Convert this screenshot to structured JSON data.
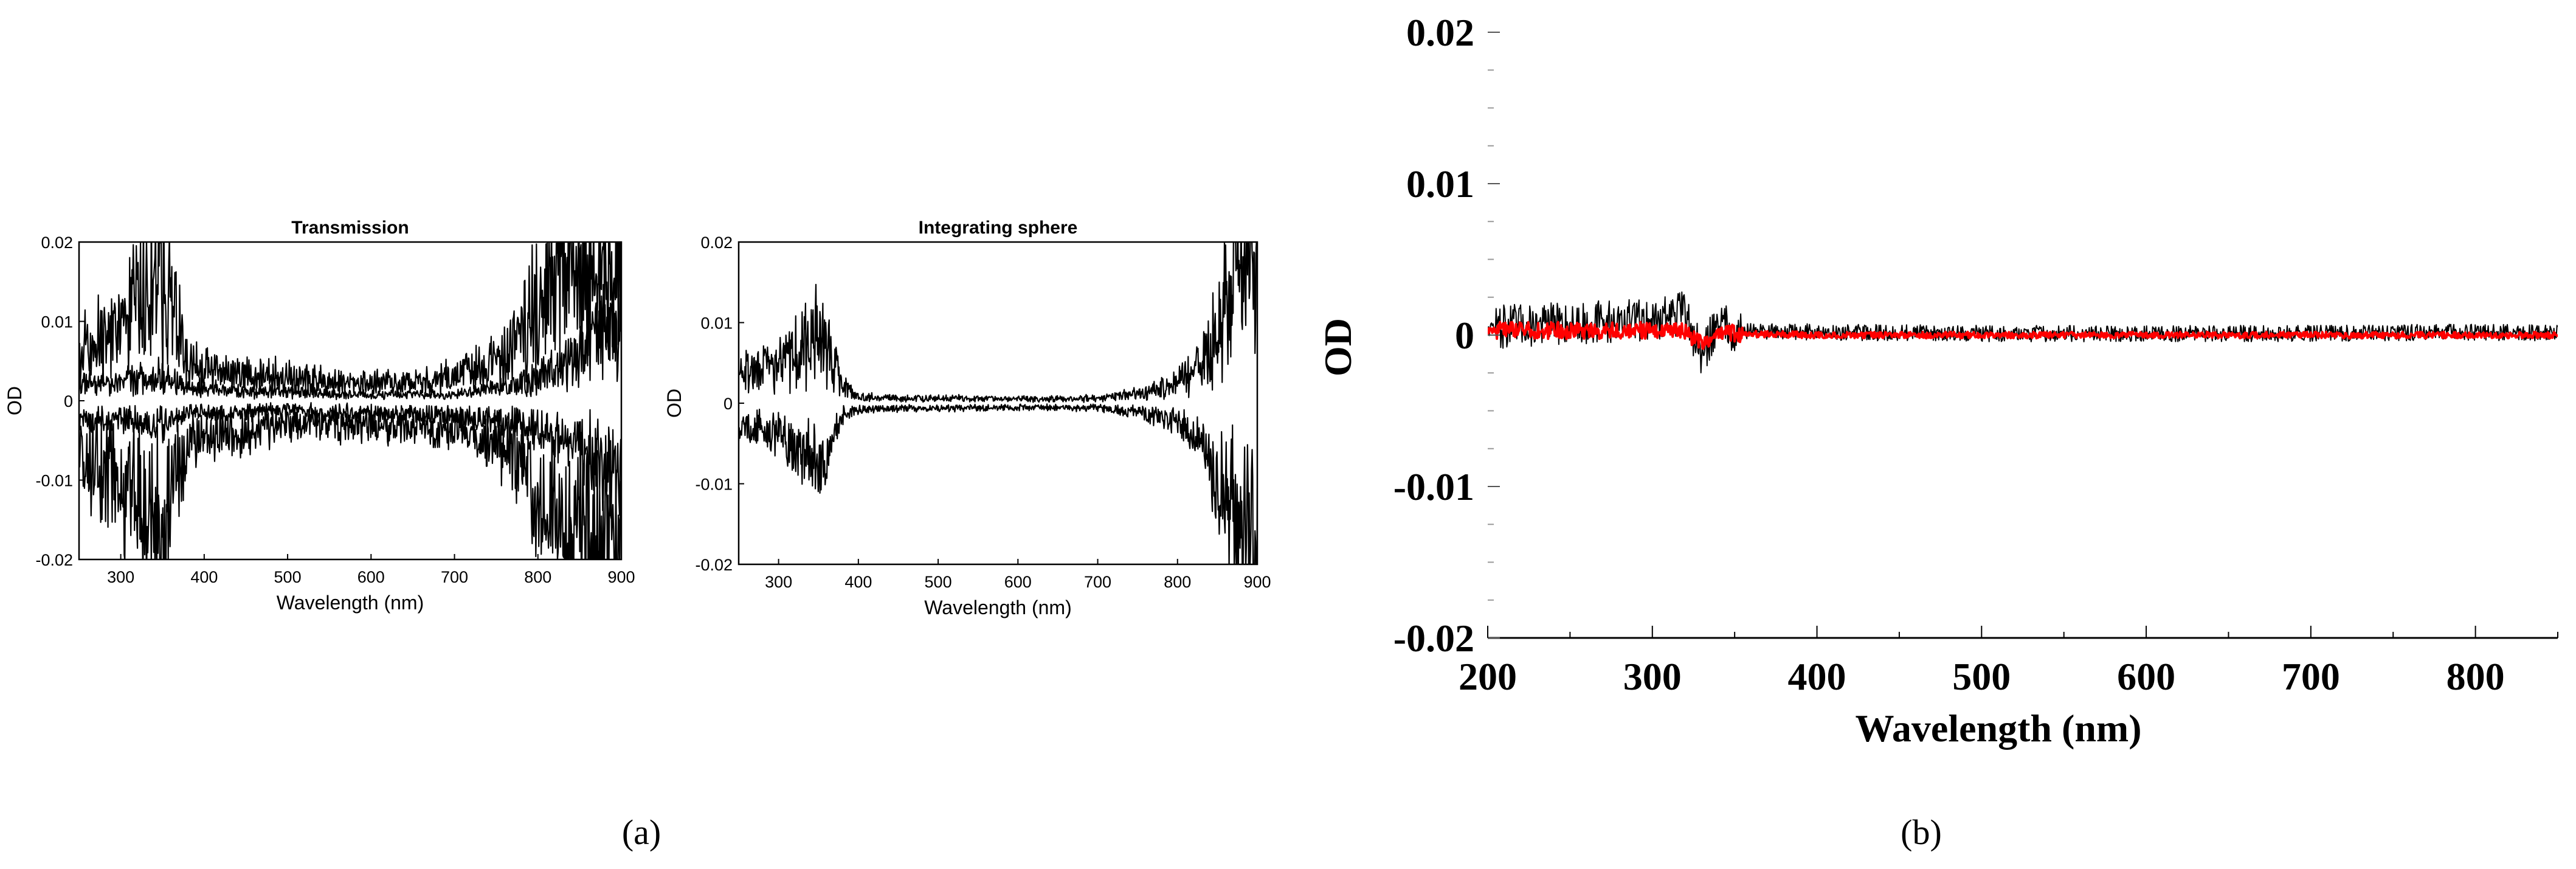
{
  "captions": {
    "a": "(a)",
    "b": "(b)"
  },
  "chart_data": [
    {
      "id": "a1",
      "type": "line",
      "title": "Transmission",
      "xlabel": "Wavelength (nm)",
      "ylabel": "OD",
      "xlim": [
        250,
        900
      ],
      "ylim": [
        -0.02,
        0.02
      ],
      "xticks": [
        300,
        400,
        500,
        600,
        700,
        800,
        900
      ],
      "yticks": [
        0.02,
        0.01,
        0,
        -0.01,
        -0.02
      ],
      "ytick_labels": [
        "0.02",
        "0.01",
        "0",
        "-0.01",
        "-0.02"
      ],
      "grid": false,
      "line_color": "#000000",
      "x": [
        250,
        300,
        350,
        380,
        400,
        450,
        500,
        550,
        600,
        650,
        700,
        750,
        780,
        800,
        830,
        850,
        870,
        890,
        900
      ],
      "series": [
        {
          "values": [
            0.008,
            0.012,
            0.02,
            0.006,
            0.005,
            0.004,
            0.004,
            0.003,
            0.003,
            0.003,
            0.004,
            0.006,
            0.01,
            0.016,
            0.02,
            0.02,
            0.02,
            0.02,
            0.02
          ]
        },
        {
          "values": [
            0.003,
            0.003,
            0.004,
            0.002,
            0.002,
            0.0015,
            0.0015,
            0.001,
            0.001,
            0.001,
            0.001,
            0.002,
            0.003,
            0.004,
            0.006,
            0.008,
            0.01,
            0.012,
            0.012
          ]
        },
        {
          "values": [
            -0.003,
            -0.003,
            -0.004,
            -0.002,
            -0.002,
            -0.002,
            -0.0015,
            -0.002,
            -0.002,
            -0.002,
            -0.0025,
            -0.003,
            -0.004,
            -0.005,
            -0.006,
            -0.008,
            -0.01,
            -0.012,
            -0.012
          ]
        },
        {
          "values": [
            -0.01,
            -0.014,
            -0.02,
            -0.007,
            -0.006,
            -0.005,
            -0.004,
            -0.004,
            -0.004,
            -0.004,
            -0.005,
            -0.007,
            -0.01,
            -0.016,
            -0.02,
            -0.02,
            -0.02,
            -0.02,
            -0.02
          ]
        }
      ]
    },
    {
      "id": "a2",
      "type": "line",
      "title": "Integrating sphere",
      "xlabel": "Wavelength (nm)",
      "ylabel": "OD",
      "xlim": [
        250,
        900
      ],
      "ylim": [
        -0.02,
        0.02
      ],
      "xticks": [
        300,
        400,
        500,
        600,
        700,
        800,
        900
      ],
      "yticks": [
        0.02,
        0.01,
        0,
        -0.01,
        -0.02
      ],
      "ytick_labels": [
        "0.02",
        "0.01",
        "0",
        "-0.01",
        "-0.02"
      ],
      "grid": false,
      "line_color": "#000000",
      "x": [
        250,
        300,
        350,
        380,
        400,
        450,
        500,
        550,
        600,
        650,
        700,
        750,
        800,
        830,
        850,
        870,
        880,
        890,
        900
      ],
      "series": [
        {
          "values": [
            0.005,
            0.006,
            0.012,
            0.003,
            0.001,
            0.0008,
            0.0008,
            0.0007,
            0.0007,
            0.0007,
            0.0008,
            0.0015,
            0.003,
            0.006,
            0.012,
            0.02,
            0.02,
            0.02,
            0.02
          ]
        },
        {
          "values": [
            -0.004,
            -0.005,
            -0.01,
            -0.002,
            -0.001,
            -0.0008,
            -0.0008,
            -0.0007,
            -0.0007,
            -0.0007,
            -0.0008,
            -0.0015,
            -0.003,
            -0.006,
            -0.012,
            -0.02,
            -0.02,
            -0.02,
            -0.02
          ]
        }
      ]
    },
    {
      "id": "b",
      "type": "line",
      "title": "",
      "xlabel": "Wavelength (nm)",
      "ylabel": "OD",
      "xlim": [
        200,
        850
      ],
      "ylim": [
        -0.02,
        0.02
      ],
      "xticks": [
        200,
        300,
        400,
        500,
        600,
        700,
        800
      ],
      "yticks": [
        0.02,
        0.01,
        0,
        -0.01,
        -0.02
      ],
      "ytick_labels": [
        "0.02",
        "0.01",
        "0",
        "-0.01",
        "-0.02"
      ],
      "grid": false,
      "x": [
        200,
        250,
        300,
        320,
        330,
        340,
        350,
        400,
        500,
        600,
        700,
        800,
        850
      ],
      "series": [
        {
          "color": "#000000",
          "values": [
            0.0005,
            0.0008,
            0.001,
            0.0015,
            -0.0015,
            0.001,
            0.0003,
            0.0002,
            0.0001,
            0.0001,
            0.0001,
            0.0002,
            0.0001
          ]
        },
        {
          "color": "#ff0000",
          "values": [
            0.0003,
            0.0003,
            0.0003,
            0.0002,
            -0.0006,
            0.0003,
            0.0001,
            0.0,
            0.0,
            0.0,
            0.0,
            0.0,
            0.0
          ]
        }
      ]
    }
  ]
}
